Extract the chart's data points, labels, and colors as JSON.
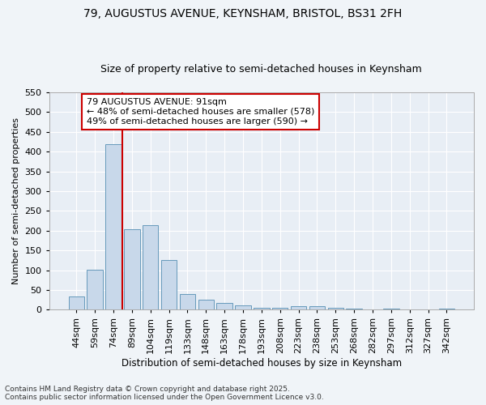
{
  "title1": "79, AUGUSTUS AVENUE, KEYNSHAM, BRISTOL, BS31 2FH",
  "title2": "Size of property relative to semi-detached houses in Keynsham",
  "xlabel": "Distribution of semi-detached houses by size in Keynsham",
  "ylabel": "Number of semi-detached properties",
  "categories": [
    "44sqm",
    "59sqm",
    "74sqm",
    "89sqm",
    "104sqm",
    "119sqm",
    "133sqm",
    "148sqm",
    "163sqm",
    "178sqm",
    "193sqm",
    "208sqm",
    "223sqm",
    "238sqm",
    "253sqm",
    "268sqm",
    "282sqm",
    "297sqm",
    "312sqm",
    "327sqm",
    "342sqm"
  ],
  "values": [
    33,
    102,
    418,
    204,
    213,
    126,
    40,
    25,
    18,
    10,
    5,
    5,
    8,
    8,
    5,
    2,
    0,
    2,
    0,
    0,
    3
  ],
  "bar_color": "#c8d8ea",
  "bar_edge_color": "#6699bb",
  "vline_color": "#cc0000",
  "vline_x_idx": 3,
  "annotation_title": "79 AUGUSTUS AVENUE: 91sqm",
  "annotation_line1": "← 48% of semi-detached houses are smaller (578)",
  "annotation_line2": "49% of semi-detached houses are larger (590) →",
  "annotation_box_color": "#ffffff",
  "annotation_box_edge": "#cc0000",
  "footer1": "Contains HM Land Registry data © Crown copyright and database right 2025.",
  "footer2": "Contains public sector information licensed under the Open Government Licence v3.0.",
  "fig_bg_color": "#f0f4f8",
  "plot_bg_color": "#e8eef5",
  "ylim": [
    0,
    550
  ],
  "yticks": [
    0,
    50,
    100,
    150,
    200,
    250,
    300,
    350,
    400,
    450,
    500,
    550
  ],
  "grid_color": "#ffffff",
  "title1_fontsize": 10,
  "title2_fontsize": 9
}
